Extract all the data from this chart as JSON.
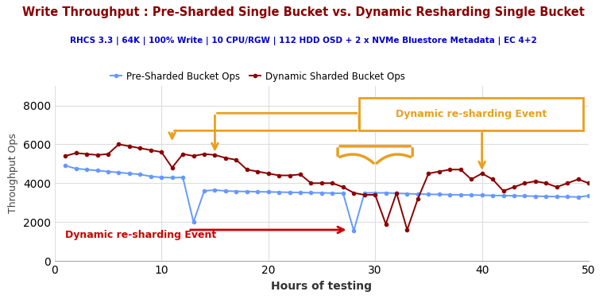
{
  "title": "Write Throughput : Pre-Sharded Single Bucket vs. Dynamic Resharding Single Bucket",
  "subtitle": "RHCS 3.3 | 64K | 100% Write | 10 CPU/RGW | 112 HDD OSD + 2 x NVMe Bluestore Metadata | EC 4+2",
  "title_color": "#8B0000",
  "subtitle_color": "#0000CD",
  "xlabel": "Hours of testing",
  "ylabel": "Throughput Ops",
  "xlim": [
    0,
    50
  ],
  "ylim": [
    0,
    9000
  ],
  "yticks": [
    0,
    2000,
    4000,
    6000,
    8000
  ],
  "xticks": [
    0,
    10,
    20,
    30,
    40,
    50
  ],
  "legend_labels": [
    "Pre-Sharded Bucket Ops",
    "Dynamic Sharded Bucket Ops"
  ],
  "blue_color": "#6699FF",
  "dark_red_color": "#8B0000",
  "orange_color": "#E8A020",
  "red_arrow_color": "#CC0000",
  "pre_sharded_x": [
    1,
    2,
    3,
    4,
    5,
    6,
    7,
    8,
    9,
    10,
    11,
    12,
    13,
    14,
    15,
    16,
    17,
    18,
    19,
    20,
    21,
    22,
    23,
    24,
    25,
    26,
    27,
    28,
    29,
    30,
    31,
    32,
    33,
    34,
    35,
    36,
    37,
    38,
    39,
    40,
    41,
    42,
    43,
    44,
    45,
    46,
    47,
    48,
    49,
    50
  ],
  "pre_sharded_y": [
    4900,
    4750,
    4700,
    4650,
    4600,
    4550,
    4500,
    4450,
    4350,
    4300,
    4280,
    4300,
    2000,
    3600,
    3650,
    3600,
    3580,
    3570,
    3560,
    3550,
    3540,
    3530,
    3520,
    3510,
    3500,
    3490,
    3480,
    1550,
    3500,
    3500,
    3500,
    3480,
    3460,
    3440,
    3430,
    3420,
    3410,
    3400,
    3390,
    3380,
    3370,
    3360,
    3350,
    3340,
    3330,
    3320,
    3310,
    3300,
    3290,
    3350
  ],
  "dynamic_x": [
    1,
    2,
    3,
    4,
    5,
    6,
    7,
    8,
    9,
    10,
    11,
    12,
    13,
    14,
    15,
    16,
    17,
    18,
    19,
    20,
    21,
    22,
    23,
    24,
    25,
    26,
    27,
    28,
    29,
    30,
    31,
    32,
    33,
    34,
    35,
    36,
    37,
    38,
    39,
    40,
    41,
    42,
    43,
    44,
    45,
    46,
    47,
    48,
    49,
    50
  ],
  "dynamic_y": [
    5400,
    5550,
    5500,
    5450,
    5500,
    6000,
    5900,
    5800,
    5700,
    5600,
    4800,
    5500,
    5400,
    5500,
    5450,
    5300,
    5200,
    4700,
    4600,
    4500,
    4400,
    4400,
    4450,
    4000,
    4000,
    4000,
    3800,
    3500,
    3400,
    3400,
    1900,
    3500,
    1600,
    3200,
    4500,
    4600,
    4700,
    4700,
    4200,
    4500,
    4200,
    3600,
    3800,
    4000,
    4100,
    4000,
    3800,
    4000,
    4200,
    4000
  ],
  "background_color": "#FFFFFF",
  "grid_color": "#DDDDDD"
}
